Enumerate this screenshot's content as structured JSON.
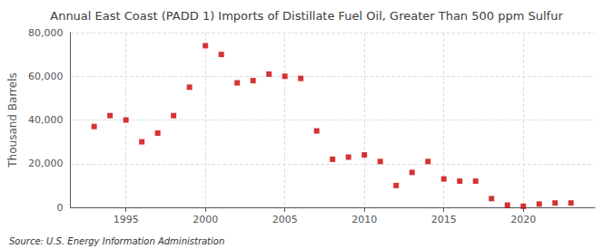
{
  "chart_data": {
    "type": "scatter",
    "title": "Annual East Coast (PADD 1) Imports of Distillate Fuel Oil, Greater Than 500 ppm Sulfur",
    "ylabel": "Thousand Barrels",
    "annotations": [
      "Source: U.S. Energy Information Administration"
    ],
    "x": [
      1993,
      1994,
      1995,
      1996,
      1997,
      1998,
      1999,
      2000,
      2001,
      2002,
      2003,
      2004,
      2005,
      2006,
      2007,
      2008,
      2009,
      2010,
      2011,
      2012,
      2013,
      2014,
      2015,
      2016,
      2017,
      2018,
      2019,
      2020,
      2021,
      2022,
      2023
    ],
    "values": [
      37000,
      42000,
      40000,
      30000,
      34000,
      42000,
      55000,
      74000,
      70000,
      57000,
      58000,
      61000,
      60000,
      59000,
      35000,
      22000,
      23000,
      24000,
      21000,
      10000,
      16000,
      21000,
      13000,
      12000,
      12000,
      4000,
      1000,
      500,
      1500,
      2000,
      2000
    ],
    "color": "#cc0000",
    "marker": "square",
    "xlim": [
      1991.5,
      2024.5
    ],
    "xticks": [
      1995,
      2000,
      2005,
      2010,
      2015,
      2020
    ],
    "ylim": [
      0,
      80000
    ],
    "yticks": [
      0,
      {
        "value": 20000,
        "label": "20,000"
      },
      {
        "value": 40000,
        "label": "40,000"
      },
      {
        "value": 60000,
        "label": "60,000"
      },
      {
        "value": 80000,
        "label": "80,000"
      }
    ],
    "grid": true
  }
}
